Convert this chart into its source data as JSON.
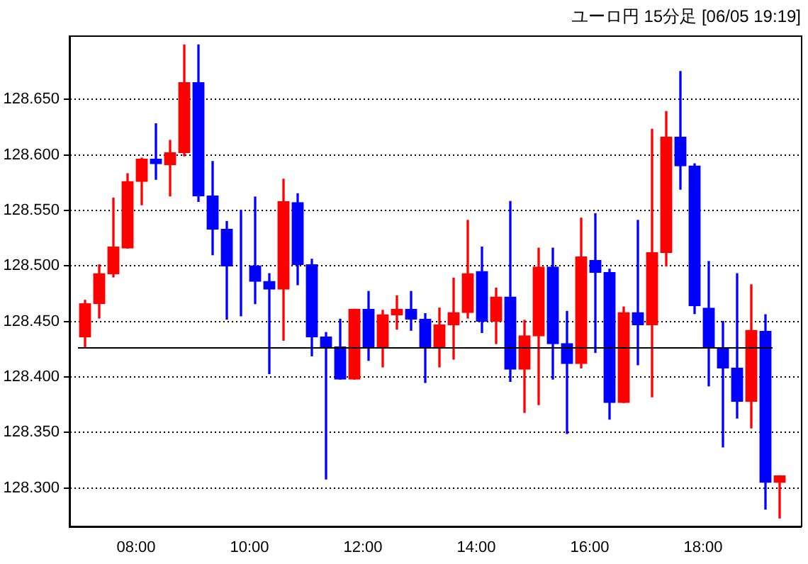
{
  "chart_data": {
    "type": "candlestick",
    "title": "ユーロ円 15分足 [06/05 19:19]",
    "x": [
      7.1,
      7.35,
      7.6,
      7.85,
      8.1,
      8.35,
      8.6,
      8.85,
      9.1,
      9.35,
      9.6,
      9.85,
      10.1,
      10.35,
      10.6,
      10.85,
      11.1,
      11.35,
      11.6,
      11.85,
      12.1,
      12.35,
      12.6,
      12.85,
      13.1,
      13.35,
      13.6,
      13.85,
      14.1,
      14.35,
      14.6,
      14.85,
      15.1,
      15.35,
      15.6,
      15.85,
      16.1,
      16.35,
      16.6,
      16.85,
      17.1,
      17.35,
      17.6,
      17.85,
      18.1,
      18.35,
      18.6,
      18.85,
      19.1,
      19.35
    ],
    "ohlc": [
      [
        128.436,
        128.469,
        128.427,
        128.466
      ],
      [
        128.466,
        128.501,
        128.453,
        128.493
      ],
      [
        128.493,
        128.561,
        128.49,
        128.517
      ],
      [
        128.516,
        128.583,
        128.516,
        128.576
      ],
      [
        128.576,
        128.597,
        128.555,
        128.596
      ],
      [
        128.596,
        128.628,
        128.578,
        128.592
      ],
      [
        128.591,
        128.613,
        128.563,
        128.602
      ],
      [
        128.602,
        128.699,
        128.599,
        128.665
      ],
      [
        128.665,
        128.699,
        128.558,
        128.563
      ],
      [
        128.563,
        128.594,
        128.51,
        128.533
      ],
      [
        128.533,
        128.54,
        128.452,
        128.5
      ],
      [
        128.5,
        128.55,
        128.455,
        128.5
      ],
      [
        128.5,
        128.562,
        128.466,
        128.486
      ],
      [
        128.486,
        128.493,
        128.403,
        128.479
      ],
      [
        128.479,
        128.578,
        128.433,
        128.558
      ],
      [
        128.557,
        128.565,
        128.483,
        128.501
      ],
      [
        128.501,
        128.506,
        128.419,
        128.436
      ],
      [
        128.436,
        128.44,
        128.308,
        128.427
      ],
      [
        128.427,
        128.452,
        128.398,
        128.398
      ],
      [
        128.398,
        128.461,
        128.398,
        128.461
      ],
      [
        128.461,
        128.477,
        128.415,
        128.427
      ],
      [
        128.427,
        128.46,
        128.409,
        128.456
      ],
      [
        128.456,
        128.473,
        128.443,
        128.461
      ],
      [
        128.461,
        128.477,
        128.442,
        128.452
      ],
      [
        128.452,
        128.457,
        128.395,
        128.427
      ],
      [
        128.427,
        128.462,
        128.409,
        128.447
      ],
      [
        128.447,
        128.489,
        128.416,
        128.458
      ],
      [
        128.458,
        128.541,
        128.453,
        128.493
      ],
      [
        128.495,
        128.517,
        128.44,
        128.45
      ],
      [
        128.45,
        128.48,
        128.43,
        128.472
      ],
      [
        128.472,
        128.558,
        128.396,
        128.407
      ],
      [
        128.407,
        128.451,
        128.368,
        128.437
      ],
      [
        128.437,
        128.516,
        128.375,
        128.499
      ],
      [
        128.499,
        128.516,
        128.398,
        128.43
      ],
      [
        128.43,
        128.459,
        128.349,
        128.412
      ],
      [
        128.412,
        128.543,
        128.408,
        128.508
      ],
      [
        128.505,
        128.547,
        128.422,
        128.494
      ],
      [
        128.494,
        128.497,
        128.362,
        128.377
      ],
      [
        128.377,
        128.463,
        128.377,
        128.458
      ],
      [
        128.458,
        128.541,
        128.411,
        128.447
      ],
      [
        128.447,
        128.623,
        128.382,
        128.512
      ],
      [
        128.512,
        128.639,
        128.5,
        128.616
      ],
      [
        128.616,
        128.675,
        128.569,
        128.59
      ],
      [
        128.59,
        128.592,
        128.457,
        128.464
      ],
      [
        128.462,
        128.504,
        128.392,
        128.426
      ],
      [
        128.426,
        128.45,
        128.337,
        128.408
      ],
      [
        128.408,
        128.493,
        128.363,
        128.378
      ],
      [
        128.378,
        128.483,
        128.354,
        128.442
      ],
      [
        128.441,
        128.456,
        128.281,
        128.305
      ],
      [
        128.305,
        128.311,
        128.273,
        128.311
      ]
    ],
    "colors": [
      "#ff0000",
      "#ff0000",
      "#ff0000",
      "#ff0000",
      "#ff0000",
      "#0000ff",
      "#ff0000",
      "#ff0000",
      "#0000ff",
      "#0000ff",
      "#0000ff",
      "#0000ff",
      "#0000ff",
      "#0000ff",
      "#ff0000",
      "#0000ff",
      "#0000ff",
      "#0000ff",
      "#0000ff",
      "#ff0000",
      "#0000ff",
      "#ff0000",
      "#ff0000",
      "#0000ff",
      "#0000ff",
      "#ff0000",
      "#ff0000",
      "#ff0000",
      "#0000ff",
      "#ff0000",
      "#0000ff",
      "#ff0000",
      "#ff0000",
      "#0000ff",
      "#0000ff",
      "#ff0000",
      "#0000ff",
      "#0000ff",
      "#ff0000",
      "#0000ff",
      "#ff0000",
      "#ff0000",
      "#0000ff",
      "#0000ff",
      "#0000ff",
      "#0000ff",
      "#0000ff",
      "#ff0000",
      "#0000ff",
      "#ff0000"
    ],
    "xlim": [
      6.825,
      19.725
    ],
    "xticks": [
      {
        "value": 8,
        "label": "08:00"
      },
      {
        "value": 10,
        "label": "10:00"
      },
      {
        "value": 12,
        "label": "12:00"
      },
      {
        "value": 14,
        "label": "14:00"
      },
      {
        "value": 16,
        "label": "16:00"
      },
      {
        "value": 18,
        "label": "18:00"
      }
    ],
    "ylim": [
      128.265,
      128.707
    ],
    "yticks": [
      {
        "value": 128.3,
        "label": "128.300"
      },
      {
        "value": 128.35,
        "label": "128.350"
      },
      {
        "value": 128.4,
        "label": "128.400"
      },
      {
        "value": 128.45,
        "label": "128.450"
      },
      {
        "value": 128.5,
        "label": "128.500"
      },
      {
        "value": 128.55,
        "label": "128.550"
      },
      {
        "value": 128.6,
        "label": "128.600"
      },
      {
        "value": 128.65,
        "label": "128.650"
      }
    ],
    "ref_lines": [
      {
        "axis": "y",
        "value": 128.427,
        "color": "#000000"
      }
    ],
    "grid": "y"
  }
}
